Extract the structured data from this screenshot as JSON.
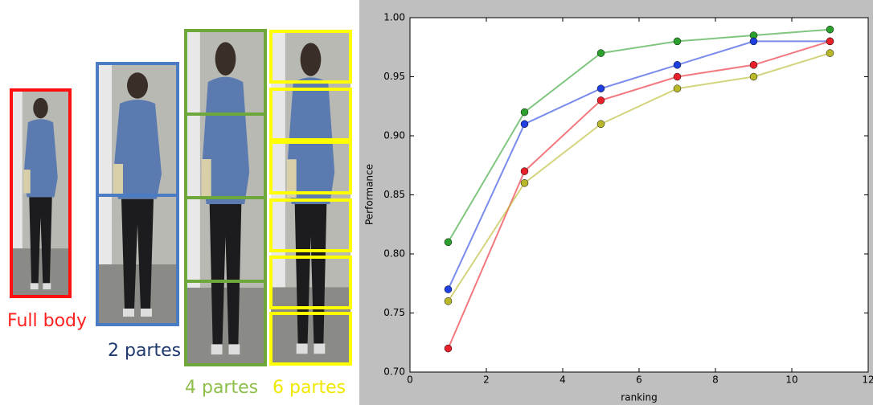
{
  "chart_data": {
    "type": "line",
    "x": [
      1,
      3,
      5,
      7,
      9,
      11
    ],
    "series": [
      {
        "color": "#2ca02c",
        "values": [
          0.81,
          0.92,
          0.97,
          0.98,
          0.985,
          0.99
        ]
      },
      {
        "color": "#1f3fe0",
        "values": [
          0.77,
          0.91,
          0.94,
          0.96,
          0.98,
          0.98
        ]
      },
      {
        "color": "#e8202a",
        "values": [
          0.72,
          0.87,
          0.93,
          0.95,
          0.96,
          0.98
        ]
      },
      {
        "color": "#b8b82a",
        "values": [
          0.76,
          0.86,
          0.91,
          0.94,
          0.95,
          0.97
        ]
      }
    ],
    "xlabel": "ranking",
    "ylabel": "Performance",
    "xlim": [
      0,
      12
    ],
    "xticks": [
      0,
      2,
      4,
      6,
      8,
      10,
      12
    ],
    "ylim": [
      0.7,
      1.0
    ],
    "yticks": [
      {
        "value": 0.7,
        "label": "0.70"
      },
      {
        "value": 0.75,
        "label": "0.75"
      },
      {
        "value": 0.8,
        "label": "0.80"
      },
      {
        "value": 0.85,
        "label": "0.85"
      },
      {
        "value": 0.9,
        "label": "0.90"
      },
      {
        "value": 0.95,
        "label": "0.95"
      },
      {
        "value": 1.0,
        "label": "1.00"
      }
    ],
    "grid": false
  },
  "panel_labels": [
    "Full body",
    "2 partes",
    "4 partes",
    "6 partes"
  ]
}
